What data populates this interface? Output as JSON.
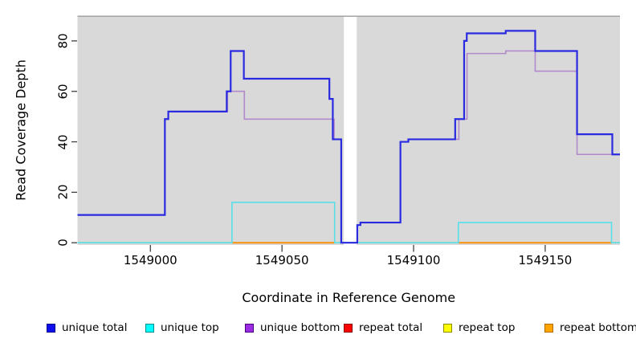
{
  "figure": {
    "background": "#ffffff",
    "plot_bg": "#d9d9d9",
    "gap_fill": "#ffffff",
    "top_border_color": "#9c9c9c",
    "tick_color": "#404040",
    "text_color": "#000000"
  },
  "chart_data": {
    "type": "line",
    "subtype": "step-coverage-plot",
    "title": "",
    "xlabel": "Coordinate in Reference Genome",
    "ylabel": "Read Coverage Depth",
    "x_range": [
      1548972.3,
      1549178.4
    ],
    "y_range": [
      0,
      90
    ],
    "x_ticks": [
      1549000,
      1549050,
      1549100,
      1549150
    ],
    "x_tick_labels": [
      "1549000",
      "1549050",
      "1549100",
      "1549150"
    ],
    "y_ticks": [
      0,
      20,
      40,
      60,
      80
    ],
    "y_tick_labels": [
      "0",
      "20",
      "40",
      "60",
      "80"
    ],
    "grid": "off",
    "legend_position": "bottom",
    "no_data_gap_x": [
      1549073.5,
      1549078.4
    ],
    "baseline_blend_color": "#84d584",
    "baseline_note": "unique top, repeat total and repeat top all sit at 0 across most of the range; their overlap renders as a pale-green baseline",
    "draw_order": [
      "baseline",
      "repeat bottom",
      "unique top",
      "unique bottom",
      "unique total"
    ],
    "legend": [
      {
        "label": "unique total",
        "fill": "#0d0df0",
        "border": "#00008b"
      },
      {
        "label": "unique top",
        "fill": "#00ffff",
        "border": "#008b8b"
      },
      {
        "label": "unique bottom",
        "fill": "#9a2be2",
        "border": "#4b0082"
      },
      {
        "label": "repeat total",
        "fill": "#ff0000",
        "border": "#8b0000"
      },
      {
        "label": "repeat top",
        "fill": "#ffff00",
        "border": "#8b8b00"
      },
      {
        "label": "repeat bottom",
        "fill": "#ffa500",
        "border": "#b36b00"
      }
    ],
    "series": [
      {
        "name": "unique total",
        "line_color": "#2a2ae0",
        "line_width": 2.2,
        "end_x": 1549178.4,
        "steps": [
          [
            1548972.3,
            11
          ],
          [
            1549005.5,
            49
          ],
          [
            1549006.8,
            52
          ],
          [
            1549029.0,
            60
          ],
          [
            1549030.5,
            76
          ],
          [
            1549035.5,
            65
          ],
          [
            1549068.0,
            57
          ],
          [
            1549069.3,
            41
          ],
          [
            1549072.5,
            0
          ],
          [
            1549078.6,
            7
          ],
          [
            1549079.8,
            8
          ],
          [
            1549095.0,
            40
          ],
          [
            1549098.0,
            41
          ],
          [
            1549115.8,
            49
          ],
          [
            1549119.2,
            80
          ],
          [
            1549120.2,
            83
          ],
          [
            1549135.0,
            84
          ],
          [
            1549146.2,
            76
          ],
          [
            1549162.1,
            43
          ],
          [
            1549175.5,
            35
          ]
        ]
      },
      {
        "name": "unique top",
        "line_color": "#58dfe8",
        "line_width": 1.6,
        "end_x": 1549178.4,
        "steps": [
          [
            1548972.3,
            0
          ],
          [
            1549031.0,
            16
          ],
          [
            1549070.0,
            0
          ],
          [
            1549117.0,
            8
          ],
          [
            1549175.2,
            0
          ]
        ]
      },
      {
        "name": "unique bottom",
        "line_color": "#b289ca",
        "line_width": 1.6,
        "end_x": 1549178.4,
        "steps": [
          [
            1548972.3,
            11
          ],
          [
            1549005.5,
            49
          ],
          [
            1549006.8,
            52
          ],
          [
            1549029.3,
            60
          ],
          [
            1549035.7,
            49
          ],
          [
            1549069.8,
            41
          ],
          [
            1549072.6,
            0
          ],
          [
            1549078.6,
            7
          ],
          [
            1549079.8,
            8
          ],
          [
            1549095.0,
            40
          ],
          [
            1549098.0,
            41
          ],
          [
            1549117.2,
            49
          ],
          [
            1549120.3,
            75
          ],
          [
            1549135.0,
            76
          ],
          [
            1549146.2,
            68
          ],
          [
            1549162.1,
            35
          ]
        ]
      },
      {
        "name": "repeat total",
        "line_color": "#ff0000",
        "line_width": 1.4,
        "end_x": 1549178.4,
        "steps": [
          [
            1548972.3,
            0
          ]
        ],
        "note": "flat at 0, hidden under baseline overlap"
      },
      {
        "name": "repeat top",
        "line_color": "#ffff00",
        "line_width": 1.4,
        "end_x": 1549178.4,
        "steps": [
          [
            1548972.3,
            0
          ]
        ],
        "note": "flat at 0, blends with unique top into pale-green baseline"
      },
      {
        "name": "repeat bottom",
        "line_color": "#ff8f0e",
        "line_width": 2.0,
        "value": 0,
        "segments_x": [
          [
            1549031.0,
            1549070.0
          ],
          [
            1549117.0,
            1549175.5
          ]
        ]
      }
    ]
  }
}
